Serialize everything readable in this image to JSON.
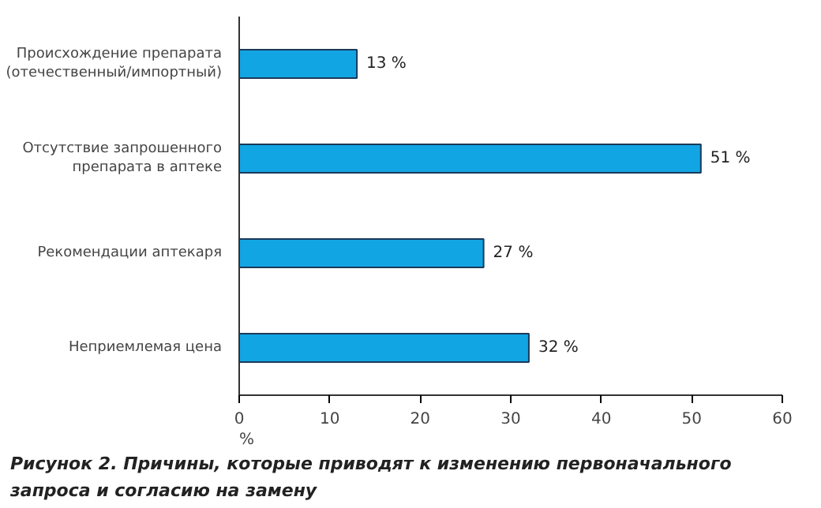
{
  "chart_data": {
    "type": "bar",
    "orientation": "horizontal",
    "title": "Рисунок 2. Причины, которые приводят к изменению первоначального запроса и согласию на замену",
    "xlabel": "%",
    "categories": [
      "Происхождение препарата\n(отечественный/импортный)",
      "Отсутствие запрошенного\nпрепарата в аптеке",
      "Рекомендации аптекаря",
      "Неприемлемая цена"
    ],
    "values": [
      13,
      51,
      27,
      32
    ],
    "value_labels": [
      "13 %",
      "51 %",
      "27 %",
      "32 %"
    ],
    "color": "#12a5e3",
    "xlim": [
      0,
      60
    ],
    "xticks": [
      0,
      10,
      20,
      30,
      40,
      50,
      60
    ],
    "grid": false
  }
}
